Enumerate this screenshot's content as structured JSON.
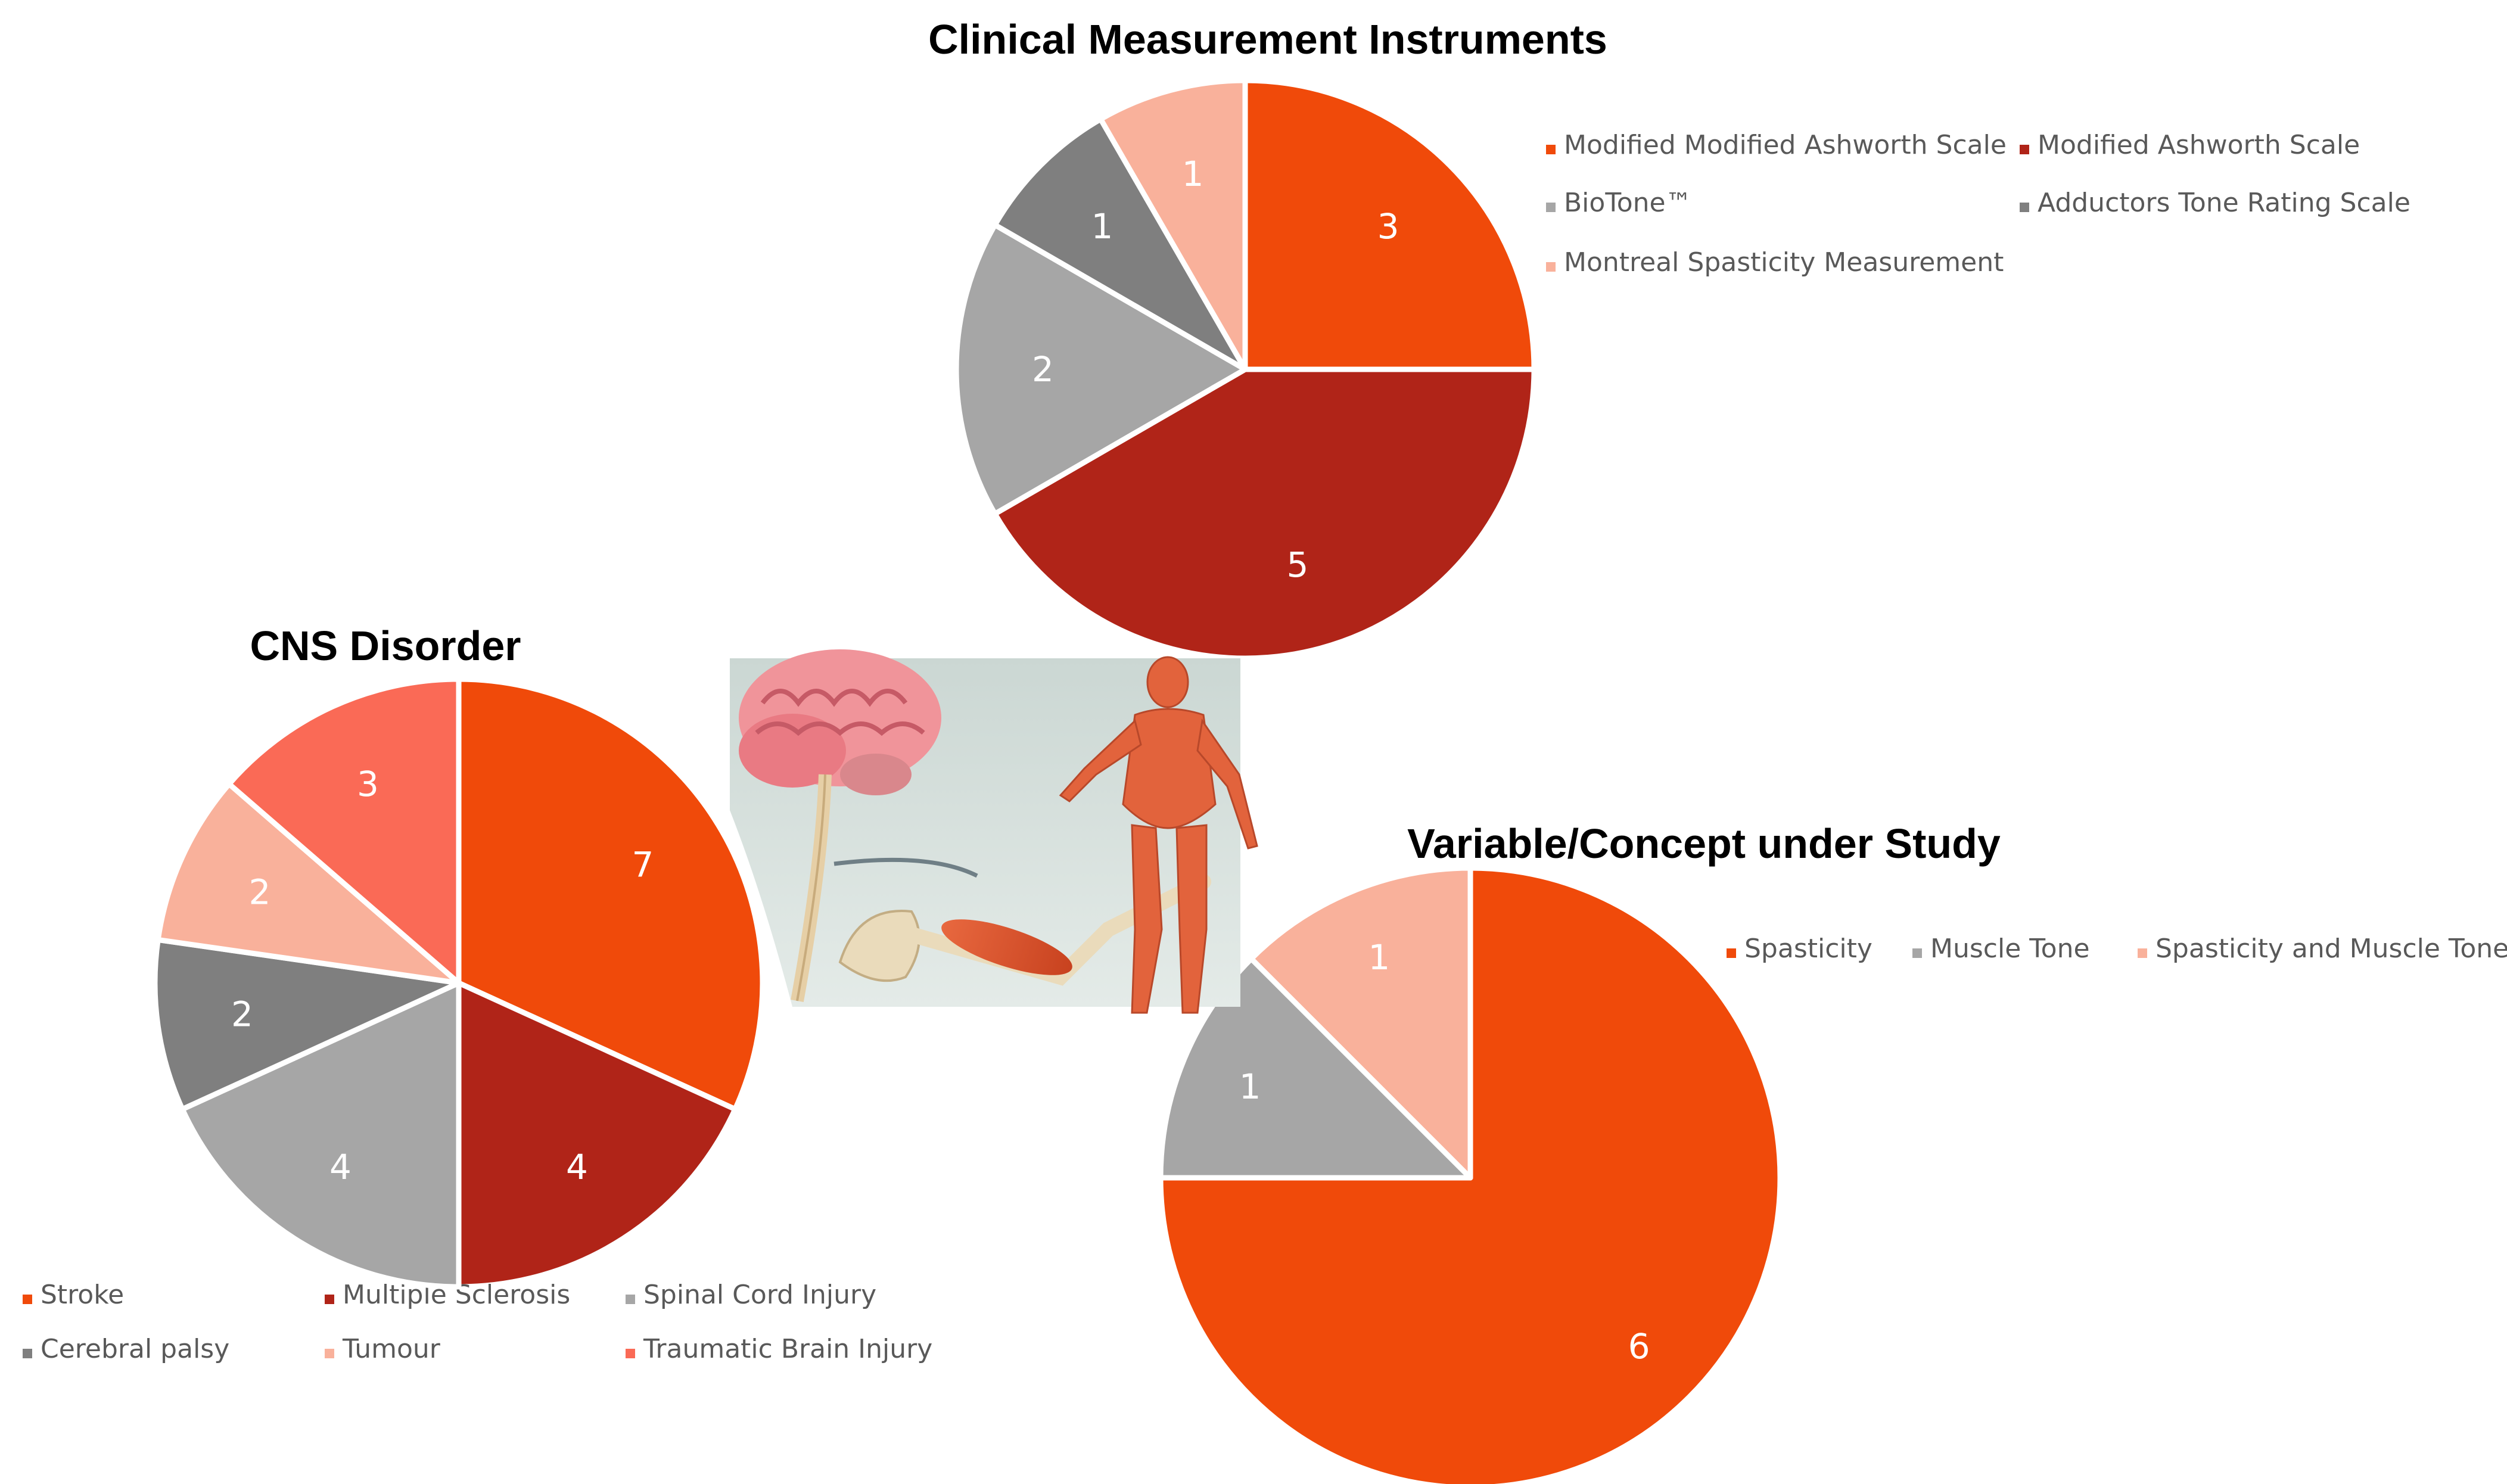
{
  "chart_data": [
    {
      "type": "pie",
      "title": "Clinical Measurement Instruments",
      "slices": [
        {
          "label": "Modified Modified Ashworth Scale",
          "value": 3,
          "color": "#f04a0a"
        },
        {
          "label": "Modified Ashworth Scale",
          "value": 5,
          "color": "#b02418"
        },
        {
          "label": "BioTone™",
          "value": 2,
          "color": "#a6a6a6"
        },
        {
          "label": "Adductors Tone Rating Scale",
          "value": 1,
          "color": "#7f7f7f"
        },
        {
          "label": "Montreal Spasticity Measurement",
          "value": 1,
          "color": "#f9b19b"
        }
      ],
      "legend_position": "right"
    },
    {
      "type": "pie",
      "title": "CNS Disorder",
      "slices": [
        {
          "label": "Stroke",
          "value": 7,
          "color": "#f04a0a"
        },
        {
          "label": "Multiple Sclerosis",
          "value": 4,
          "color": "#b02418"
        },
        {
          "label": "Spinal Cord Injury",
          "value": 4,
          "color": "#a6a6a6"
        },
        {
          "label": "Cerebral palsy",
          "value": 2,
          "color": "#7f7f7f"
        },
        {
          "label": "Tumour",
          "value": 2,
          "color": "#f9b19b"
        },
        {
          "label": "Traumatic Brain Injury",
          "value": 3,
          "color": "#fa6a56"
        }
      ],
      "legend_position": "bottom"
    },
    {
      "type": "pie",
      "title": "Variable/Concept under Study",
      "slices": [
        {
          "label": "Spasticity",
          "value": 6,
          "color": "#f04a0a"
        },
        {
          "label": "Muscle Tone",
          "value": 1,
          "color": "#a6a6a6"
        },
        {
          "label": "Spasticity and Muscle Tone",
          "value": 1,
          "color": "#f9b19b"
        }
      ],
      "legend_position": "top-right"
    }
  ],
  "illustration": {
    "icon": "brain-nerve-muscle-illustration-icon"
  }
}
